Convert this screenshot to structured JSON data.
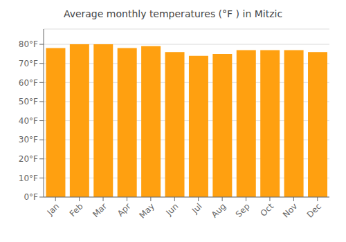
{
  "chart_data": {
    "type": "bar",
    "title": "Average monthly temperatures (°F ) in Mitzic",
    "categories": [
      "Jan",
      "Feb",
      "Mar",
      "Apr",
      "May",
      "Jun",
      "Jul",
      "Aug",
      "Sep",
      "Oct",
      "Nov",
      "Dec"
    ],
    "values": [
      78,
      80,
      80,
      78,
      79,
      76,
      74,
      75,
      77,
      77,
      77,
      76
    ],
    "color": "#FFA010",
    "ylim": [
      0,
      88
    ],
    "yticks": [
      {
        "value": 0,
        "label": "0°F"
      },
      {
        "value": 10,
        "label": "10°F"
      },
      {
        "value": 20,
        "label": "20°F"
      },
      {
        "value": 30,
        "label": "30°F"
      },
      {
        "value": 40,
        "label": "40°F"
      },
      {
        "value": 50,
        "label": "50°F"
      },
      {
        "value": 60,
        "label": "60°F"
      },
      {
        "value": 70,
        "label": "70°F"
      },
      {
        "value": 80,
        "label": "80°F"
      }
    ],
    "grid": true
  }
}
